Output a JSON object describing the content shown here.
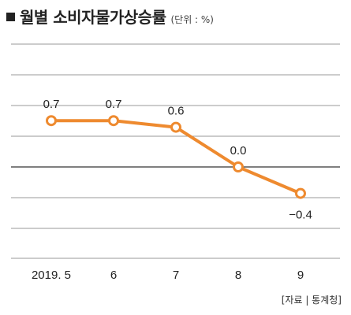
{
  "header": {
    "title": "월별 소비자물가상승률",
    "unit": "(단위 : %)"
  },
  "source": "[자료 | 통계청]",
  "colors": {
    "series": "#ee8a2f",
    "grid": "#9a9a9a",
    "zero_line": "#333333"
  },
  "chart_data": {
    "type": "line",
    "categories": [
      "2019. 5",
      "6",
      "7",
      "8",
      "9"
    ],
    "series": [
      {
        "values": [
          0.7,
          0.7,
          0.6,
          0.0,
          -0.4
        ]
      }
    ],
    "data_labels": [
      "0.7",
      "0.7",
      "0.6",
      "0.0",
      "−0.4"
    ],
    "ylim": [
      -1.0,
      1.2
    ],
    "grid": true,
    "xlabel": "",
    "ylabel": ""
  }
}
